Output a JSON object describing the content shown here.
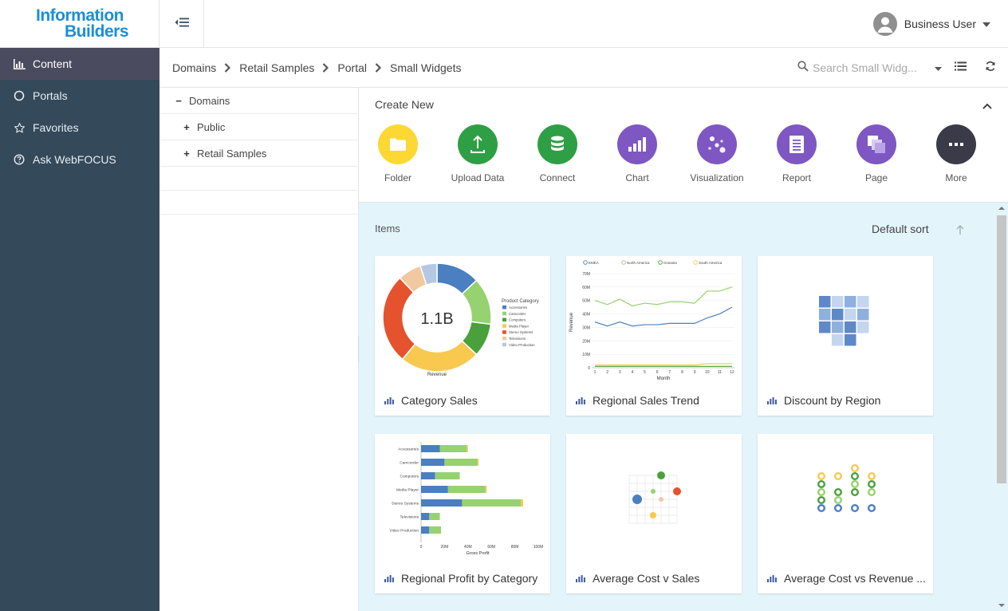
{
  "brand": {
    "line1": "Information",
    "line2": "Builders"
  },
  "nav": [
    {
      "label": "Content",
      "icon": "bar-chart-icon",
      "active": true
    },
    {
      "label": "Portals",
      "icon": "circle-icon"
    },
    {
      "label": "Favorites",
      "icon": "star-icon"
    },
    {
      "label": "Ask WebFOCUS",
      "icon": "question-icon"
    }
  ],
  "user": {
    "name": "Business User"
  },
  "breadcrumb": [
    "Domains",
    "Retail Samples",
    "Portal",
    "Small Widgets"
  ],
  "search": {
    "placeholder": "Search Small Widg..."
  },
  "tree": [
    {
      "label": "Domains",
      "sign": "−"
    },
    {
      "label": "Public",
      "sign": "+"
    },
    {
      "label": "Retail Samples",
      "sign": "+"
    }
  ],
  "create_new": {
    "title": "Create New",
    "tiles": [
      {
        "label": "Folder",
        "color": "#fdd835",
        "icon": "folder-icon"
      },
      {
        "label": "Upload Data",
        "color": "#2e9f45",
        "icon": "upload-icon"
      },
      {
        "label": "Connect",
        "color": "#2e9f45",
        "icon": "database-icon"
      },
      {
        "label": "Chart",
        "color": "#7e57c2",
        "icon": "chart-icon"
      },
      {
        "label": "Visualization",
        "color": "#7e57c2",
        "icon": "visualization-icon"
      },
      {
        "label": "Report",
        "color": "#7e57c2",
        "icon": "report-icon"
      },
      {
        "label": "Page",
        "color": "#7e57c2",
        "icon": "page-icon"
      },
      {
        "label": "More",
        "color": "#3a3a48",
        "icon": "more-icon"
      }
    ]
  },
  "items": {
    "title": "Items",
    "sort_label": "Default sort",
    "cards": [
      {
        "title": "Category Sales"
      },
      {
        "title": "Regional Sales Trend"
      },
      {
        "title": "Discount by Region"
      },
      {
        "title": "Regional Profit by Category"
      },
      {
        "title": "Average Cost v Sales"
      },
      {
        "title": "Average Cost vs Revenue ..."
      }
    ]
  },
  "chart_data": [
    {
      "type": "pie",
      "center_label": "1.1B",
      "xlabel": "Revenue",
      "legend_title": "Product Category",
      "legend_placement": "right",
      "categories": [
        "Accessories",
        "Camcorder",
        "Computers",
        "Media Player",
        "Stereo Systems",
        "Televisions",
        "Video Production"
      ],
      "values": [
        13,
        14,
        10,
        24,
        27,
        7,
        5
      ],
      "colors": [
        "#4a7fc1",
        "#96d26f",
        "#4aa03b",
        "#f9c84f",
        "#e4532e",
        "#f0c9a0",
        "#b4c8e4"
      ]
    },
    {
      "type": "line",
      "xlabel": "Month",
      "ylabel": "Revenue",
      "x": [
        1,
        2,
        3,
        4,
        5,
        6,
        7,
        8,
        9,
        10,
        11,
        12
      ],
      "ylim": [
        0,
        70
      ],
      "ytick_labels": [
        "0",
        "10M",
        "20M",
        "30M",
        "40M",
        "50M",
        "60M",
        "70M"
      ],
      "legend_placement": "top",
      "series": [
        {
          "name": "EMEA",
          "color": "#4a7fc1",
          "values": [
            34,
            31,
            34,
            31,
            32,
            32,
            33,
            33,
            33,
            37,
            40,
            45
          ]
        },
        {
          "name": "North America",
          "color": "#96d26f",
          "values": [
            50,
            47,
            51,
            46,
            48,
            47,
            49,
            49,
            48,
            57,
            57,
            60
          ]
        },
        {
          "name": "Oceania",
          "color": "#4aa03b",
          "values": [
            1,
            1,
            1,
            1,
            1,
            1,
            1,
            1,
            1,
            1,
            1,
            1
          ]
        },
        {
          "name": "South America",
          "color": "#f9c84f",
          "values": [
            2,
            2,
            2,
            2,
            2,
            2,
            2,
            2,
            2,
            3,
            3,
            3
          ]
        }
      ]
    },
    {
      "type": "heatmap",
      "values": [
        [
          3,
          1,
          2,
          1
        ],
        [
          2,
          3,
          1,
          2
        ],
        [
          3,
          2,
          3,
          1
        ],
        [
          0,
          1,
          3,
          0
        ]
      ],
      "colors": [
        "#ffffff",
        "#c3d6ee",
        "#8fb0de",
        "#5e89c8"
      ]
    },
    {
      "type": "bar",
      "orientation": "horizontal",
      "xlabel": "Gross Profit",
      "xlim": [
        0,
        100
      ],
      "xtick_labels": [
        "0",
        "20M",
        "40M",
        "60M",
        "80M",
        "100M"
      ],
      "categories": [
        "Accessories",
        "Camcorder",
        "Computers",
        "Media Player",
        "Stereo Systems",
        "Televisions",
        "Video Production"
      ],
      "series": [
        {
          "color": "#4a7fc1",
          "values": [
            16,
            20,
            12,
            23,
            35,
            7,
            7
          ]
        },
        {
          "color": "#96d26f",
          "values": [
            23,
            28,
            21,
            32,
            50,
            9,
            10
          ]
        },
        {
          "color": "#f9c84f",
          "values": [
            1,
            1,
            0,
            1,
            2,
            0,
            0
          ]
        }
      ]
    },
    {
      "type": "scatter",
      "points": [
        {
          "x": 1,
          "y": 3,
          "size": 6,
          "color": "#4a7fc1"
        },
        {
          "x": 4,
          "y": 6,
          "size": 5,
          "color": "#4aa03b"
        },
        {
          "x": 6,
          "y": 4,
          "size": 5,
          "color": "#e4532e"
        },
        {
          "x": 3,
          "y": 4,
          "size": 3,
          "color": "#96d26f"
        },
        {
          "x": 4,
          "y": 3,
          "size": 3,
          "color": "#f0c9a0"
        },
        {
          "x": 3,
          "y": 1,
          "size": 4,
          "color": "#f9c84f"
        }
      ]
    },
    {
      "type": "scatter",
      "style": "rings",
      "points": [
        {
          "x": 1,
          "y": 5,
          "color": "#f9c84f"
        },
        {
          "x": 2,
          "y": 5,
          "color": "#f9c84f"
        },
        {
          "x": 3,
          "y": 6,
          "color": "#f9c84f"
        },
        {
          "x": 4,
          "y": 5,
          "color": "#f9c84f"
        },
        {
          "x": 1,
          "y": 4,
          "color": "#4aa03b"
        },
        {
          "x": 3,
          "y": 5,
          "color": "#4aa03b"
        },
        {
          "x": 4,
          "y": 4,
          "color": "#4aa03b"
        },
        {
          "x": 1,
          "y": 3,
          "color": "#96d26f"
        },
        {
          "x": 2,
          "y": 3,
          "color": "#4aa03b"
        },
        {
          "x": 3,
          "y": 4,
          "color": "#96d26f"
        },
        {
          "x": 4,
          "y": 3,
          "color": "#96d26f"
        },
        {
          "x": 1,
          "y": 2,
          "color": "#4aa03b"
        },
        {
          "x": 2,
          "y": 2,
          "color": "#96d26f"
        },
        {
          "x": 3,
          "y": 3,
          "color": "#4aa03b"
        },
        {
          "x": 1,
          "y": 1,
          "color": "#4a7fc1"
        },
        {
          "x": 2,
          "y": 1,
          "color": "#4a7fc1"
        },
        {
          "x": 3,
          "y": 1,
          "color": "#4a7fc1"
        },
        {
          "x": 4,
          "y": 1,
          "color": "#4a7fc1"
        }
      ]
    }
  ]
}
